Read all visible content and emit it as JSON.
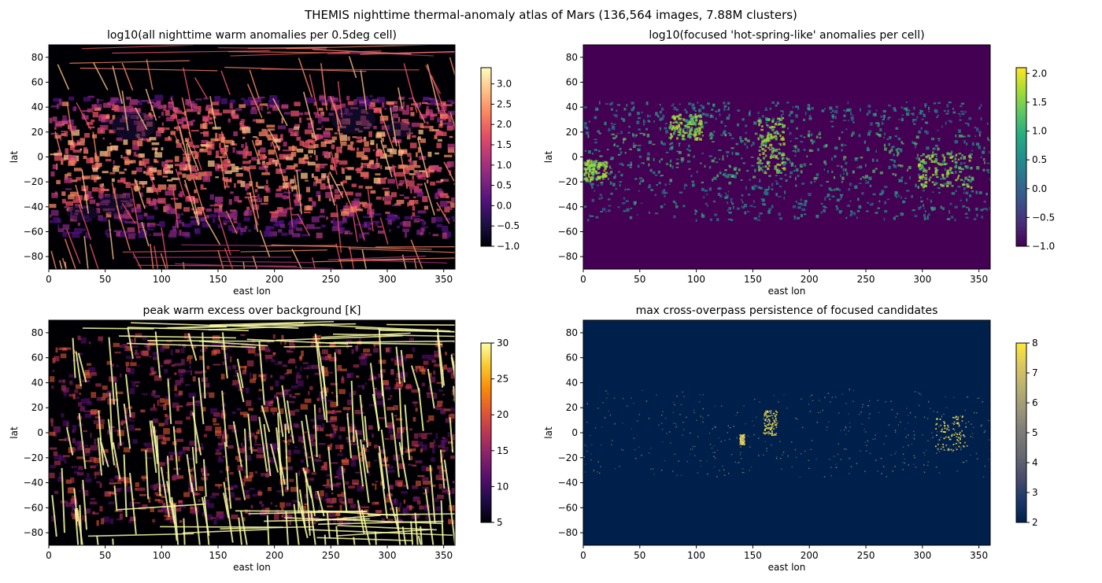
{
  "figure": {
    "suptitle": "THEMIS nighttime thermal-anomaly atlas of Mars (136,564 images, 7.88M clusters)"
  },
  "chart_data": [
    {
      "type": "heatmap",
      "title": "log10(all nighttime warm anomalies per 0.5deg cell)",
      "xlabel": "east lon",
      "ylabel": "lat",
      "xlim": [
        0,
        360
      ],
      "ylim": [
        -90,
        90
      ],
      "xticks": [
        "0",
        "50",
        "100",
        "150",
        "200",
        "250",
        "300",
        "350"
      ],
      "yticks": [
        "80",
        "60",
        "40",
        "20",
        "0",
        "−20",
        "−40",
        "−60",
        "−80"
      ],
      "colormap": "magma",
      "colorbar": {
        "min": -1.0,
        "max": 3.4,
        "ticks": [
          "3.0",
          "2.5",
          "2.0",
          "1.5",
          "1.0",
          "0.5",
          "0.0",
          "−0.5",
          "−1.0"
        ]
      },
      "background_color": "#000004"
    },
    {
      "type": "heatmap",
      "title": "log10(focused 'hot-spring-like' anomalies per cell)",
      "xlabel": "east lon",
      "ylabel": "lat",
      "xlim": [
        0,
        360
      ],
      "ylim": [
        -90,
        90
      ],
      "xticks": [
        "0",
        "50",
        "100",
        "150",
        "200",
        "250",
        "300",
        "350"
      ],
      "yticks": [
        "80",
        "60",
        "40",
        "20",
        "0",
        "−20",
        "−40",
        "−60",
        "−80"
      ],
      "colormap": "viridis",
      "colorbar": {
        "min": -1.0,
        "max": 2.1,
        "ticks": [
          "2.0",
          "1.5",
          "1.0",
          "0.5",
          "0.0",
          "−0.5",
          "−1.0"
        ]
      },
      "background_color": "#440154"
    },
    {
      "type": "heatmap",
      "title": "peak warm excess over background [K]",
      "xlabel": "east lon",
      "ylabel": "lat",
      "xlim": [
        0,
        360
      ],
      "ylim": [
        -90,
        90
      ],
      "xticks": [
        "0",
        "50",
        "100",
        "150",
        "200",
        "250",
        "300",
        "350"
      ],
      "yticks": [
        "80",
        "60",
        "40",
        "20",
        "0",
        "−20",
        "−40",
        "−60",
        "−80"
      ],
      "colormap": "inferno",
      "colorbar": {
        "min": 5,
        "max": 30,
        "ticks": [
          "30",
          "25",
          "20",
          "15",
          "10",
          "5"
        ]
      },
      "background_color": "#000004"
    },
    {
      "type": "heatmap",
      "title": "max cross-overpass persistence of focused candidates",
      "xlabel": "east lon",
      "ylabel": "lat",
      "xlim": [
        0,
        360
      ],
      "ylim": [
        -90,
        90
      ],
      "xticks": [
        "0",
        "50",
        "100",
        "150",
        "200",
        "250",
        "300",
        "350"
      ],
      "yticks": [
        "80",
        "60",
        "40",
        "20",
        "0",
        "−20",
        "−40",
        "−60",
        "−80"
      ],
      "colormap": "cividis",
      "colorbar": {
        "min": 2,
        "max": 8,
        "ticks": [
          "8",
          "7",
          "6",
          "5",
          "4",
          "3",
          "2"
        ]
      },
      "background_color": "#00204c"
    }
  ]
}
